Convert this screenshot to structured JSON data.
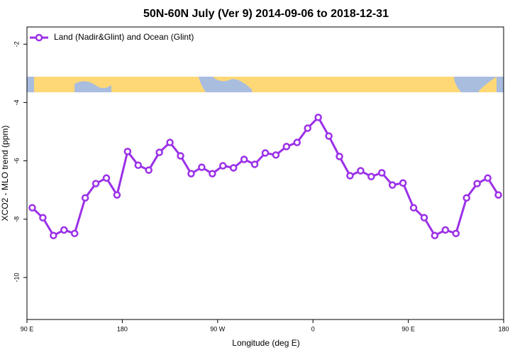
{
  "chart_data": {
    "type": "line",
    "title": "50N-60N July (Ver 9)   2014-09-06 to 2018-12-31",
    "x_label": "Longitude (deg E)",
    "y_label": "XCO2 - MLO trend (ppm)",
    "x": [
      95,
      105,
      115,
      125,
      135,
      145,
      155,
      165,
      175,
      185,
      195,
      205,
      215,
      225,
      235,
      245,
      255,
      265,
      275,
      285,
      295,
      305,
      315,
      325,
      335,
      345,
      355,
      365,
      375,
      385,
      395,
      405,
      415,
      425,
      435,
      445,
      455,
      465,
      475,
      485,
      495,
      505,
      515,
      525,
      535
    ],
    "series": [
      {
        "name": "Land (Nadir&Glint) and Ocean (Glint)",
        "color": "#9b30e8",
        "values": [
          -7.61,
          -7.95,
          -8.56,
          -8.37,
          -8.49,
          -7.27,
          -6.78,
          -6.59,
          -7.17,
          -5.68,
          -6.15,
          -6.32,
          -5.71,
          -5.37,
          -5.83,
          -6.44,
          -6.22,
          -6.44,
          -6.17,
          -6.24,
          -5.95,
          -6.12,
          -5.73,
          -5.8,
          -5.51,
          -5.37,
          -4.88,
          -4.51,
          -5.15,
          -5.85,
          -6.51,
          -6.34,
          -6.54,
          -6.41,
          -6.83,
          -6.76,
          -7.61,
          -7.95,
          -8.56,
          -8.37,
          -8.49,
          -7.27,
          -6.78,
          -6.59,
          -7.17
        ]
      }
    ],
    "xlim": [
      90,
      540
    ],
    "xticks": [
      {
        "value": 90,
        "label": "90 E"
      },
      180,
      {
        "value": 270,
        "label": "90 W"
      },
      {
        "value": 360,
        "label": "0"
      },
      {
        "value": 450,
        "label": "90 E"
      },
      {
        "value": 540,
        "label": "180"
      }
    ],
    "ylim": [
      -11.44,
      -1.41
    ],
    "yticks": [
      -2,
      -4,
      -6,
      -8,
      -10
    ],
    "legend": "top-left"
  }
}
